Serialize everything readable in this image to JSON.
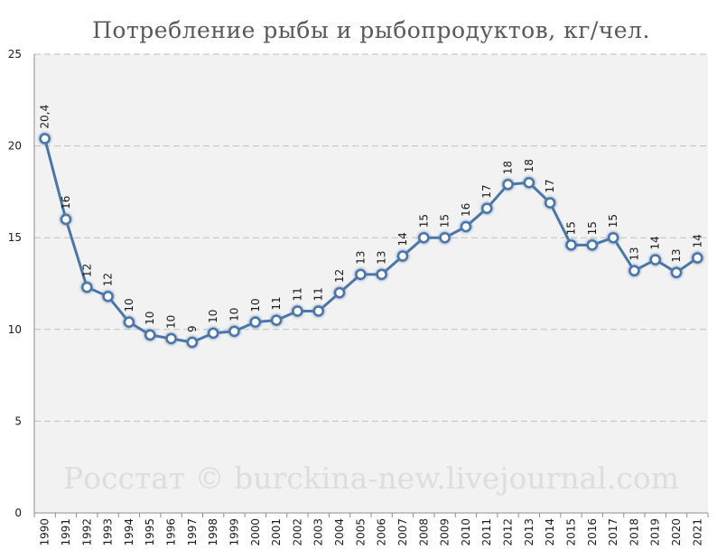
{
  "chart_data": {
    "type": "line",
    "title": "Потребление рыбы и рыбопродуктов, кг/чел.",
    "xlabel": "",
    "ylabel": "",
    "ylim": [
      0,
      25
    ],
    "yticks": [
      0,
      5,
      10,
      15,
      20,
      25
    ],
    "grid": true,
    "legend": "none",
    "categories": [
      "1990",
      "1991",
      "1992",
      "1993",
      "1994",
      "1995",
      "1996",
      "1997",
      "1998",
      "1999",
      "2000",
      "2001",
      "2002",
      "2003",
      "2004",
      "2005",
      "2006",
      "2007",
      "2008",
      "2009",
      "2010",
      "2011",
      "2012",
      "2013",
      "2014",
      "2015",
      "2016",
      "2017",
      "2018",
      "2019",
      "2020",
      "2021"
    ],
    "series": [
      {
        "name": "Потребление рыбы и рыбопродуктов",
        "values": [
          20.4,
          16.0,
          12.3,
          11.8,
          10.4,
          9.7,
          9.5,
          9.3,
          9.8,
          9.9,
          10.4,
          10.5,
          11.0,
          11.0,
          12.0,
          13.0,
          13.0,
          14.0,
          15.0,
          15.0,
          15.6,
          16.6,
          17.9,
          18.0,
          16.9,
          14.6,
          14.6,
          15.0,
          13.2,
          13.8,
          13.1,
          13.9
        ],
        "labels": [
          "20,4",
          "16",
          "12",
          "12",
          "10",
          "10",
          "10",
          "9",
          "10",
          "10",
          "10",
          "11",
          "11",
          "11",
          "12",
          "13",
          "13",
          "14",
          "15",
          "15",
          "16",
          "17",
          "18",
          "18",
          "17",
          "15",
          "15",
          "15",
          "13",
          "14",
          "13",
          "14"
        ]
      }
    ],
    "watermark": "Росстат © burckina-new.livejournal.com",
    "colors": {
      "line": "#4a76a8",
      "marker_fill": "#ffffff",
      "marker_stroke": "#4a76a8",
      "plot_bg": "#f2f2f2",
      "grid": "#bfbfbf",
      "axis": "#8c8c8c"
    }
  }
}
